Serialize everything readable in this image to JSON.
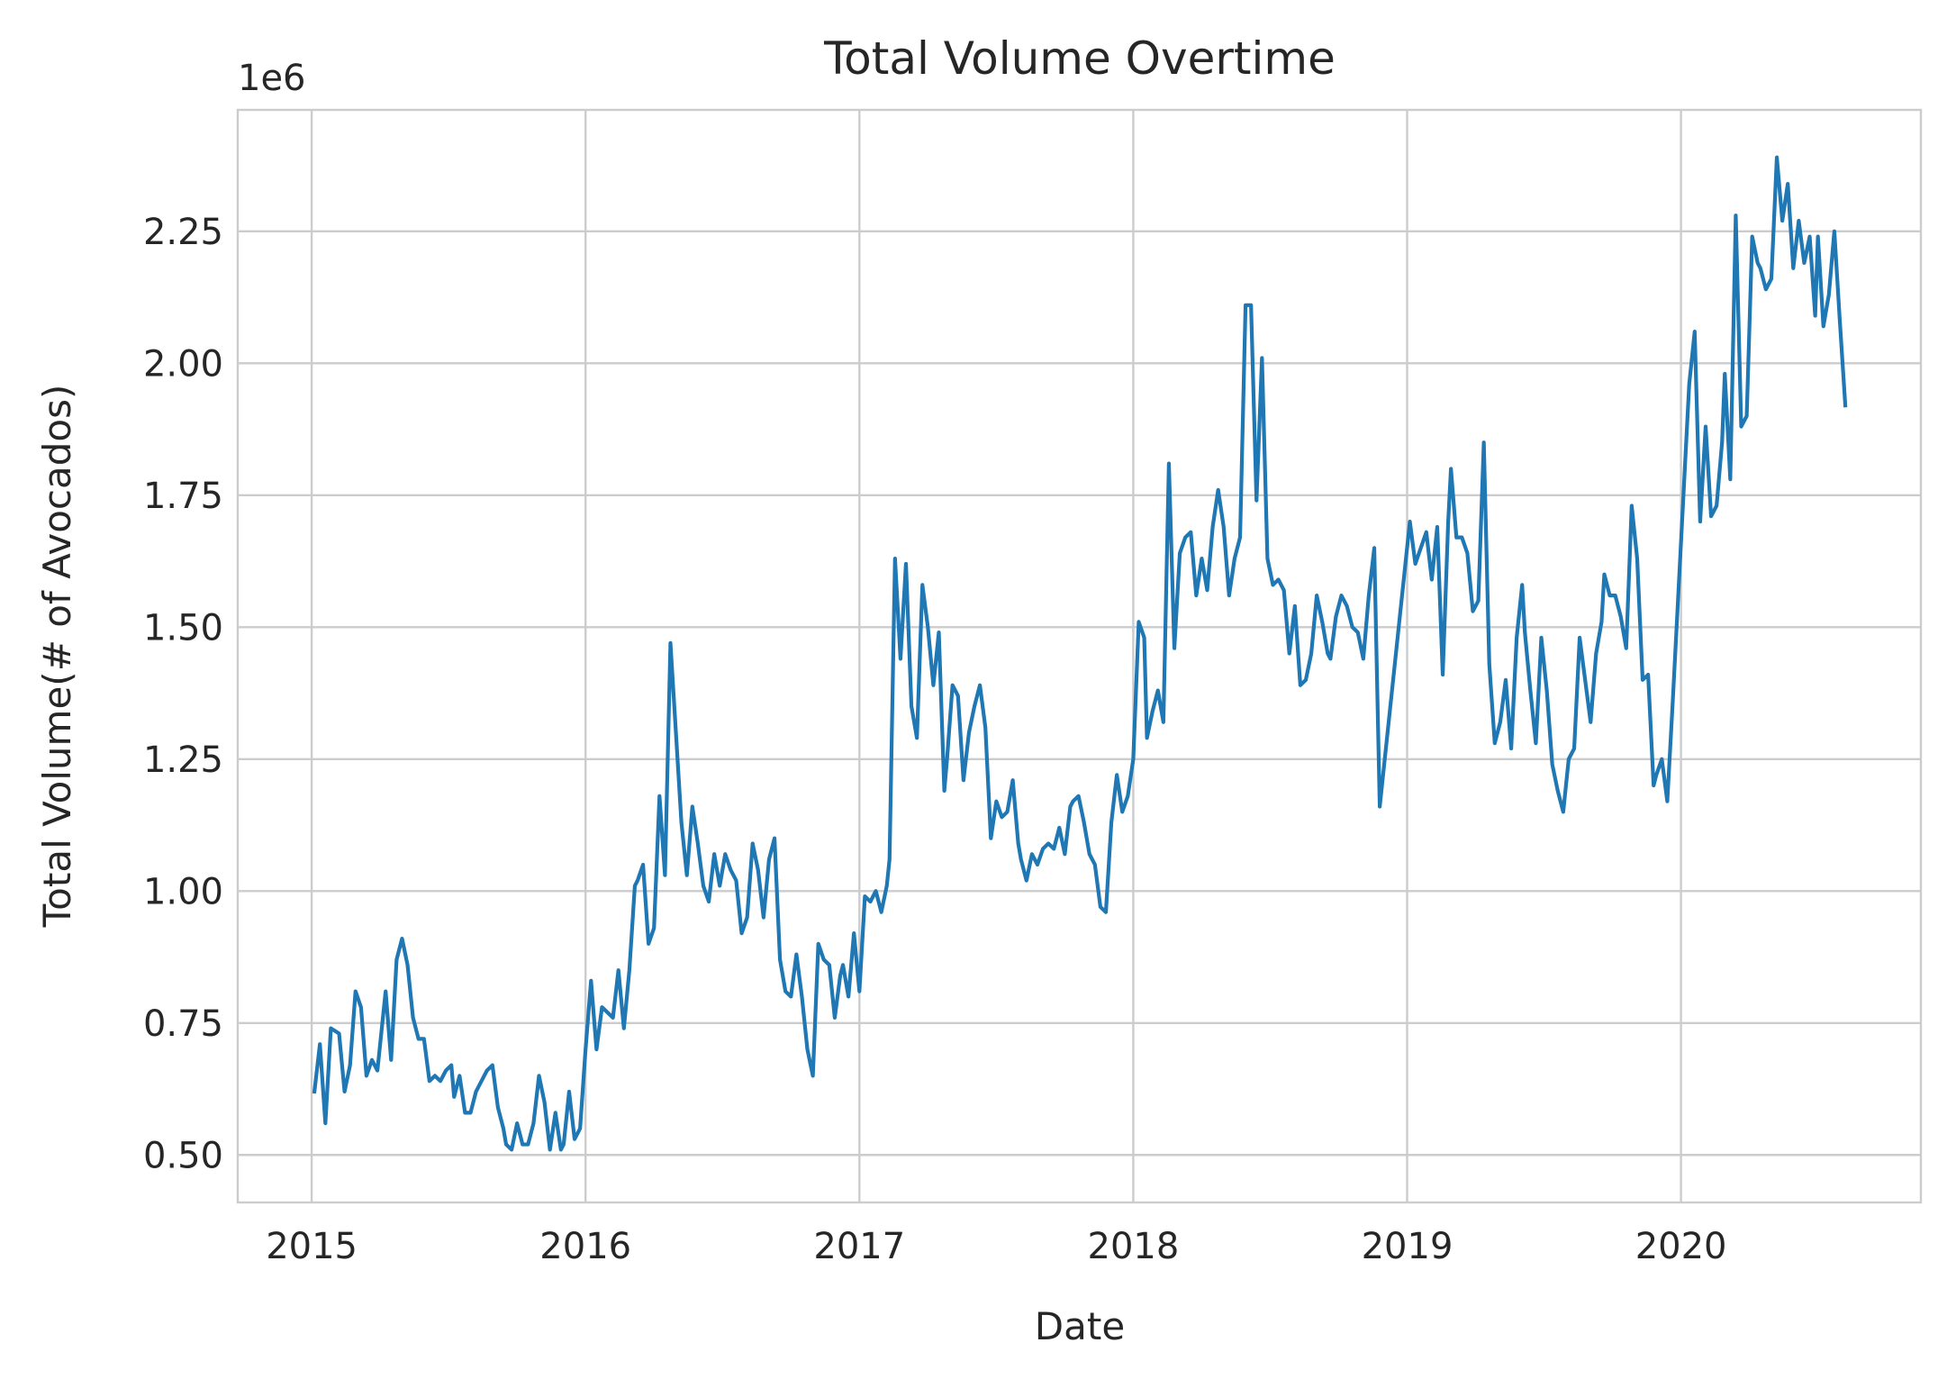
{
  "chart_data": {
    "type": "line",
    "title": "Total Volume Overtime",
    "x_label": "Date",
    "y_label": "Total Volume(# of Avocados)",
    "y_offset_label": "1e6",
    "color": "#1f77b4",
    "grid": true,
    "xlim": [
      2014.73,
      2020.876
    ],
    "ylim": [
      0.41,
      2.48
    ],
    "xticks": [
      2015,
      2016,
      2017,
      2018,
      2019,
      2020
    ],
    "yticks": [
      {
        "value": 0.5,
        "label": "0.50"
      },
      {
        "value": 0.75,
        "label": "0.75"
      },
      {
        "value": 1.0,
        "label": "1.00"
      },
      {
        "value": 1.25,
        "label": "1.25"
      },
      {
        "value": 1.5,
        "label": "1.50"
      },
      {
        "value": 1.75,
        "label": "1.75"
      },
      {
        "value": 2.0,
        "label": "2.00"
      },
      {
        "value": 2.25,
        "label": "2.25"
      }
    ],
    "x": [
      2015.01,
      2015.03,
      2015.05,
      2015.07,
      2015.1,
      2015.12,
      2015.14,
      2015.16,
      2015.18,
      2015.2,
      2015.22,
      2015.24,
      2015.27,
      2015.29,
      2015.31,
      2015.33,
      2015.35,
      2015.37,
      2015.39,
      2015.41,
      2015.43,
      2015.45,
      2015.47,
      2015.49,
      2015.51,
      2015.52,
      2015.54,
      2015.56,
      2015.58,
      2015.6,
      2015.62,
      2015.64,
      2015.66,
      2015.68,
      2015.7,
      2015.71,
      2015.73,
      2015.75,
      2015.77,
      2015.79,
      2015.81,
      2015.83,
      2015.85,
      2015.87,
      2015.89,
      2015.91,
      2015.92,
      2015.94,
      2015.96,
      2015.98,
      2016.0,
      2016.02,
      2016.04,
      2016.06,
      2016.08,
      2016.1,
      2016.12,
      2016.14,
      2016.16,
      2016.18,
      2016.19,
      2016.21,
      2016.23,
      2016.25,
      2016.27,
      2016.29,
      2016.31,
      2016.33,
      2016.35,
      2016.37,
      2016.39,
      2016.41,
      2016.43,
      2016.45,
      2016.47,
      2016.49,
      2016.51,
      2016.53,
      2016.55,
      2016.57,
      2016.59,
      2016.61,
      2016.63,
      2016.65,
      2016.67,
      2016.69,
      2016.71,
      2016.73,
      2016.75,
      2016.77,
      2016.79,
      2016.81,
      2016.83,
      2016.85,
      2016.87,
      2016.89,
      2016.91,
      2016.93,
      2016.94,
      2016.96,
      2016.98,
      2017.0,
      2017.02,
      2017.04,
      2017.06,
      2017.08,
      2017.1,
      2017.11,
      2017.13,
      2017.15,
      2017.17,
      2017.19,
      2017.21,
      2017.23,
      2017.25,
      2017.27,
      2017.29,
      2017.31,
      2017.32,
      2017.34,
      2017.36,
      2017.38,
      2017.4,
      2017.42,
      2017.44,
      2017.46,
      2017.48,
      2017.5,
      2017.52,
      2017.54,
      2017.56,
      2017.58,
      2017.59,
      2017.61,
      2017.63,
      2017.65,
      2017.67,
      2017.69,
      2017.71,
      2017.73,
      2017.75,
      2017.77,
      2017.78,
      2017.8,
      2017.82,
      2017.84,
      2017.86,
      2017.88,
      2017.9,
      2017.92,
      2017.94,
      2017.96,
      2017.98,
      2018.0,
      2018.02,
      2018.04,
      2018.05,
      2018.07,
      2018.09,
      2018.11,
      2018.13,
      2018.15,
      2018.17,
      2018.19,
      2018.21,
      2018.23,
      2018.25,
      2018.27,
      2018.29,
      2018.31,
      2018.33,
      2018.35,
      2018.37,
      2018.39,
      2018.41,
      2018.43,
      2018.45,
      2018.47,
      2018.49,
      2018.51,
      2018.53,
      2018.55,
      2018.57,
      2018.59,
      2018.61,
      2018.63,
      2018.65,
      2018.67,
      2018.69,
      2018.71,
      2018.72,
      2018.74,
      2018.76,
      2018.78,
      2018.8,
      2018.82,
      2018.84,
      2018.86,
      2018.88,
      2018.9,
      2019.01,
      2019.03,
      2019.05,
      2019.07,
      2019.09,
      2019.11,
      2019.13,
      2019.15,
      2019.16,
      2019.18,
      2019.2,
      2019.22,
      2019.24,
      2019.26,
      2019.28,
      2019.3,
      2019.32,
      2019.34,
      2019.36,
      2019.38,
      2019.4,
      2019.42,
      2019.43,
      2019.45,
      2019.47,
      2019.49,
      2019.51,
      2019.53,
      2019.55,
      2019.57,
      2019.59,
      2019.61,
      2019.63,
      2019.65,
      2019.67,
      2019.69,
      2019.71,
      2019.72,
      2019.74,
      2019.76,
      2019.78,
      2019.8,
      2019.82,
      2019.84,
      2019.86,
      2019.88,
      2019.9,
      2019.91,
      2019.93,
      2019.95,
      2019.97,
      2020.0,
      2020.03,
      2020.05,
      2020.07,
      2020.09,
      2020.11,
      2020.13,
      2020.15,
      2020.16,
      2020.18,
      2020.2,
      2020.22,
      2020.24,
      2020.26,
      2020.28,
      2020.29,
      2020.31,
      2020.33,
      2020.35,
      2020.37,
      2020.39,
      2020.41,
      2020.43,
      2020.45,
      2020.47,
      2020.49,
      2020.5,
      2020.52,
      2020.54,
      2020.56,
      2020.58,
      2020.6
    ],
    "values": [
      0.62,
      0.71,
      0.56,
      0.74,
      0.73,
      0.62,
      0.67,
      0.81,
      0.78,
      0.65,
      0.68,
      0.66,
      0.81,
      0.68,
      0.87,
      0.91,
      0.86,
      0.76,
      0.72,
      0.72,
      0.64,
      0.65,
      0.64,
      0.66,
      0.67,
      0.61,
      0.65,
      0.58,
      0.58,
      0.62,
      0.64,
      0.66,
      0.67,
      0.59,
      0.55,
      0.52,
      0.51,
      0.56,
      0.52,
      0.52,
      0.56,
      0.65,
      0.6,
      0.51,
      0.58,
      0.51,
      0.52,
      0.62,
      0.53,
      0.55,
      0.7,
      0.83,
      0.7,
      0.78,
      0.77,
      0.76,
      0.85,
      0.74,
      0.85,
      1.01,
      1.02,
      1.05,
      0.9,
      0.93,
      1.18,
      1.03,
      1.47,
      1.3,
      1.13,
      1.03,
      1.16,
      1.09,
      1.01,
      0.98,
      1.07,
      1.01,
      1.07,
      1.04,
      1.02,
      0.92,
      0.95,
      1.09,
      1.04,
      0.95,
      1.06,
      1.1,
      0.87,
      0.81,
      0.8,
      0.88,
      0.8,
      0.7,
      0.65,
      0.9,
      0.87,
      0.86,
      0.76,
      0.84,
      0.86,
      0.8,
      0.92,
      0.81,
      0.99,
      0.98,
      1.0,
      0.96,
      1.01,
      1.06,
      1.63,
      1.44,
      1.62,
      1.35,
      1.29,
      1.58,
      1.5,
      1.39,
      1.49,
      1.19,
      1.25,
      1.39,
      1.37,
      1.21,
      1.3,
      1.35,
      1.39,
      1.31,
      1.1,
      1.17,
      1.14,
      1.15,
      1.21,
      1.09,
      1.06,
      1.02,
      1.07,
      1.05,
      1.08,
      1.09,
      1.08,
      1.12,
      1.07,
      1.16,
      1.17,
      1.18,
      1.13,
      1.07,
      1.05,
      0.97,
      0.96,
      1.13,
      1.22,
      1.15,
      1.18,
      1.25,
      1.51,
      1.48,
      1.29,
      1.34,
      1.38,
      1.32,
      1.81,
      1.46,
      1.64,
      1.67,
      1.68,
      1.56,
      1.63,
      1.57,
      1.69,
      1.76,
      1.69,
      1.56,
      1.63,
      1.67,
      2.11,
      2.11,
      1.74,
      2.01,
      1.63,
      1.58,
      1.59,
      1.57,
      1.45,
      1.54,
      1.39,
      1.4,
      1.45,
      1.56,
      1.51,
      1.45,
      1.44,
      1.52,
      1.56,
      1.54,
      1.5,
      1.49,
      1.44,
      1.56,
      1.65,
      1.16,
      1.7,
      1.62,
      1.65,
      1.68,
      1.59,
      1.69,
      1.41,
      1.7,
      1.8,
      1.67,
      1.67,
      1.64,
      1.53,
      1.55,
      1.85,
      1.43,
      1.28,
      1.32,
      1.4,
      1.27,
      1.48,
      1.58,
      1.49,
      1.38,
      1.28,
      1.48,
      1.38,
      1.24,
      1.19,
      1.15,
      1.25,
      1.27,
      1.48,
      1.4,
      1.32,
      1.45,
      1.51,
      1.6,
      1.56,
      1.56,
      1.52,
      1.46,
      1.73,
      1.63,
      1.4,
      1.41,
      1.2,
      1.22,
      1.25,
      1.17,
      1.36,
      1.66,
      1.96,
      2.06,
      1.7,
      1.88,
      1.71,
      1.73,
      1.85,
      1.98,
      1.78,
      2.28,
      1.88,
      1.9,
      2.24,
      2.19,
      2.18,
      2.14,
      2.16,
      2.39,
      2.27,
      2.34,
      2.18,
      2.27,
      2.19,
      2.24,
      2.09,
      2.24,
      2.07,
      2.13,
      2.25,
      2.08,
      1.92
    ]
  }
}
